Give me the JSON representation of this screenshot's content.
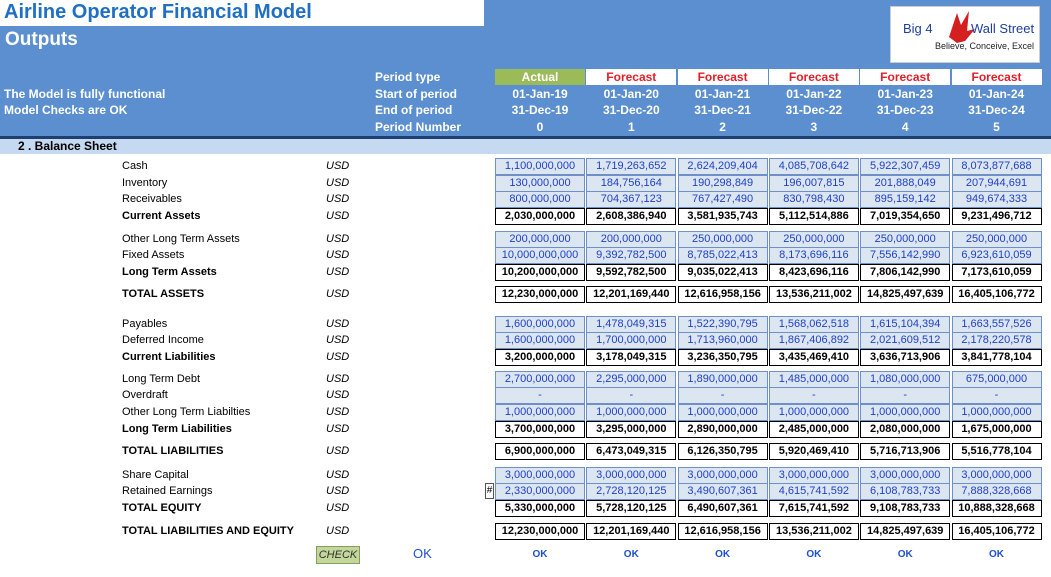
{
  "header": {
    "title": "Airline Operator Financial Model",
    "subtitle": "Outputs",
    "status": [
      "The Model is fully functional",
      "Model Checks are OK"
    ],
    "logo": {
      "name_left": "Big 4",
      "name_right": "Wall Street",
      "tagline": "Believe, Conceive, Excel"
    }
  },
  "periods": {
    "labels": [
      "Period type",
      "Start of period",
      "End of period",
      "Period Number"
    ],
    "type": [
      "Actual",
      "Forecast",
      "Forecast",
      "Forecast",
      "Forecast",
      "Forecast"
    ],
    "start": [
      "01-Jan-19",
      "01-Jan-20",
      "01-Jan-21",
      "01-Jan-22",
      "01-Jan-23",
      "01-Jan-24"
    ],
    "end": [
      "31-Dec-19",
      "31-Dec-20",
      "31-Dec-21",
      "31-Dec-22",
      "31-Dec-23",
      "31-Dec-24"
    ],
    "number": [
      0,
      1,
      2,
      3,
      4,
      5
    ]
  },
  "section": "2 . Balance Sheet",
  "rows": [
    {
      "label": "Cash",
      "unit": "USD",
      "style": "input",
      "values": [
        "1,100,000,000",
        "1,719,263,652",
        "2,624,209,404",
        "4,085,708,642",
        "5,922,307,459",
        "8,073,877,688"
      ]
    },
    {
      "label": "Inventory",
      "unit": "USD",
      "style": "input",
      "values": [
        "130,000,000",
        "184,756,164",
        "190,298,849",
        "196,007,815",
        "201,888,049",
        "207,944,691"
      ]
    },
    {
      "label": "Receivables",
      "unit": "USD",
      "style": "input",
      "values": [
        "800,000,000",
        "704,367,123",
        "767,427,490",
        "830,798,430",
        "895,159,142",
        "949,674,333"
      ]
    },
    {
      "label": "Current Assets",
      "unit": "USD",
      "style": "total",
      "values": [
        "2,030,000,000",
        "2,608,386,940",
        "3,581,935,743",
        "5,112,514,886",
        "7,019,354,650",
        "9,231,496,712"
      ]
    },
    {
      "label": "Other Long Term Assets",
      "unit": "USD",
      "style": "input",
      "values": [
        "200,000,000",
        "200,000,000",
        "250,000,000",
        "250,000,000",
        "250,000,000",
        "250,000,000"
      ]
    },
    {
      "label": "Fixed Assets",
      "unit": "USD",
      "style": "input",
      "values": [
        "10,000,000,000",
        "9,392,782,500",
        "8,785,022,413",
        "8,173,696,116",
        "7,556,142,990",
        "6,923,610,059"
      ]
    },
    {
      "label": "Long Term Assets",
      "unit": "USD",
      "style": "total",
      "values": [
        "10,200,000,000",
        "9,592,782,500",
        "9,035,022,413",
        "8,423,696,116",
        "7,806,142,990",
        "7,173,610,059"
      ]
    },
    {
      "label": "TOTAL ASSETS",
      "unit": "USD",
      "style": "total",
      "values": [
        "12,230,000,000",
        "12,201,169,440",
        "12,616,958,156",
        "13,536,211,002",
        "14,825,497,639",
        "16,405,106,772"
      ]
    },
    {
      "label": "Payables",
      "unit": "USD",
      "style": "input",
      "values": [
        "1,600,000,000",
        "1,478,049,315",
        "1,522,390,795",
        "1,568,062,518",
        "1,615,104,394",
        "1,663,557,526"
      ]
    },
    {
      "label": "Deferred Income",
      "unit": "USD",
      "style": "input",
      "values": [
        "1,600,000,000",
        "1,700,000,000",
        "1,713,960,000",
        "1,867,406,892",
        "2,021,609,512",
        "2,178,220,578"
      ]
    },
    {
      "label": "Current Liabilities",
      "unit": "USD",
      "style": "total",
      "values": [
        "3,200,000,000",
        "3,178,049,315",
        "3,236,350,795",
        "3,435,469,410",
        "3,636,713,906",
        "3,841,778,104"
      ]
    },
    {
      "label": "Long Term Debt",
      "unit": "USD",
      "style": "input",
      "values": [
        "2,700,000,000",
        "2,295,000,000",
        "1,890,000,000",
        "1,485,000,000",
        "1,080,000,000",
        "675,000,000"
      ]
    },
    {
      "label": "Overdraft",
      "unit": "USD",
      "style": "input",
      "values": [
        "-",
        "-",
        "-",
        "-",
        "-",
        "-"
      ]
    },
    {
      "label": "Other Long Term Liabilties",
      "unit": "USD",
      "style": "input",
      "values": [
        "1,000,000,000",
        "1,000,000,000",
        "1,000,000,000",
        "1,000,000,000",
        "1,000,000,000",
        "1,000,000,000"
      ]
    },
    {
      "label": "Long Term Liabilities",
      "unit": "USD",
      "style": "total",
      "values": [
        "3,700,000,000",
        "3,295,000,000",
        "2,890,000,000",
        "2,485,000,000",
        "2,080,000,000",
        "1,675,000,000"
      ]
    },
    {
      "label": "TOTAL LIABILITIES",
      "unit": "USD",
      "style": "total",
      "values": [
        "6,900,000,000",
        "6,473,049,315",
        "6,126,350,795",
        "5,920,469,410",
        "5,716,713,906",
        "5,516,778,104"
      ]
    },
    {
      "label": "Share Capital",
      "unit": "USD",
      "style": "input",
      "values": [
        "3,000,000,000",
        "3,000,000,000",
        "3,000,000,000",
        "3,000,000,000",
        "3,000,000,000",
        "3,000,000,000"
      ]
    },
    {
      "label": "Retained Earnings",
      "unit": "USD",
      "style": "input",
      "marker": "#",
      "values": [
        "2,330,000,000",
        "2,728,120,125",
        "3,490,607,361",
        "4,615,741,592",
        "6,108,783,733",
        "7,888,328,668"
      ]
    },
    {
      "label": "TOTAL EQUITY",
      "unit": "USD",
      "style": "total",
      "values": [
        "5,330,000,000",
        "5,728,120,125",
        "6,490,607,361",
        "7,615,741,592",
        "9,108,783,733",
        "10,888,328,668"
      ]
    },
    {
      "label": "TOTAL LIABILITIES AND EQUITY",
      "unit": "USD",
      "style": "total",
      "values": [
        "12,230,000,000",
        "12,201,169,440",
        "12,616,958,156",
        "13,536,211,002",
        "14,825,497,639",
        "16,405,106,772"
      ]
    }
  ],
  "check": {
    "label": "CHECK",
    "status": "OK",
    "values": [
      "OK",
      "OK",
      "OK",
      "OK",
      "OK",
      "OK"
    ]
  }
}
